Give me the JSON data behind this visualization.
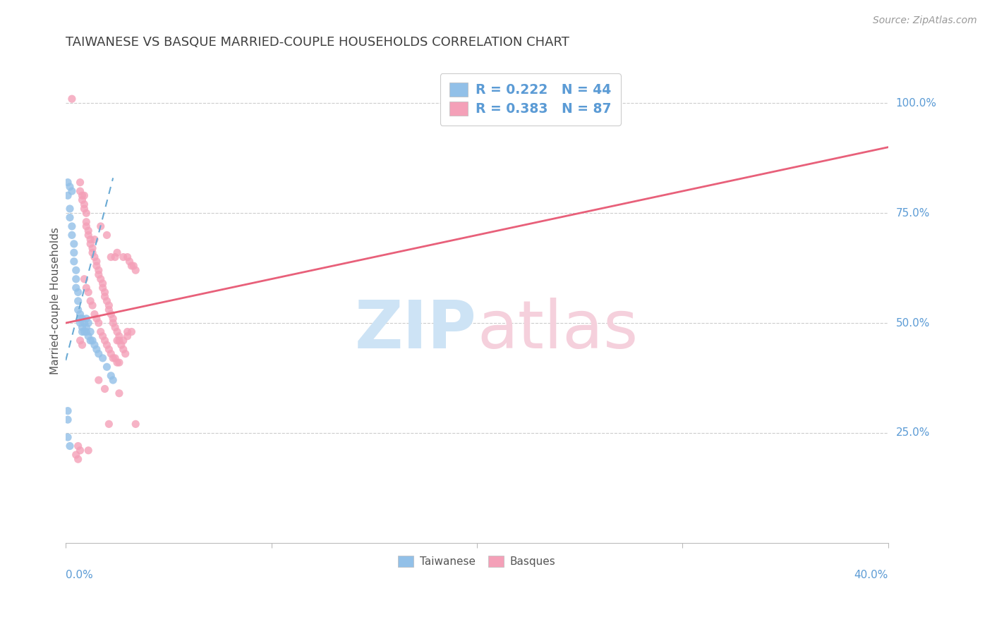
{
  "title": "TAIWANESE VS BASQUE MARRIED-COUPLE HOUSEHOLDS CORRELATION CHART",
  "source": "Source: ZipAtlas.com",
  "ylabel": "Married-couple Households",
  "ytick_labels": [
    "100.0%",
    "75.0%",
    "50.0%",
    "25.0%"
  ],
  "ytick_values": [
    1.0,
    0.75,
    0.5,
    0.25
  ],
  "xlim": [
    0.0,
    0.4
  ],
  "ylim": [
    0.0,
    1.1
  ],
  "legend_line1": "R = 0.222   N = 44",
  "legend_line2": "R = 0.383   N = 87",
  "taiwanese_color": "#92c0e8",
  "basque_color": "#f4a0b8",
  "taiwanese_line_color": "#6aaad4",
  "basque_line_color": "#e8607a",
  "watermark_zip_color": "#cde3f5",
  "watermark_atlas_color": "#f5d0dc",
  "title_color": "#404040",
  "title_fontsize": 13,
  "source_fontsize": 10,
  "axis_tick_color": "#5b9bd5",
  "grid_color": "#cccccc",
  "legend_text_color": "#5b9bd5",
  "taiwanese_points": [
    [
      0.001,
      0.82
    ],
    [
      0.001,
      0.79
    ],
    [
      0.002,
      0.81
    ],
    [
      0.002,
      0.76
    ],
    [
      0.002,
      0.74
    ],
    [
      0.003,
      0.8
    ],
    [
      0.003,
      0.72
    ],
    [
      0.003,
      0.7
    ],
    [
      0.004,
      0.68
    ],
    [
      0.004,
      0.66
    ],
    [
      0.004,
      0.64
    ],
    [
      0.005,
      0.62
    ],
    [
      0.005,
      0.6
    ],
    [
      0.005,
      0.58
    ],
    [
      0.006,
      0.57
    ],
    [
      0.006,
      0.55
    ],
    [
      0.006,
      0.53
    ],
    [
      0.007,
      0.52
    ],
    [
      0.007,
      0.51
    ],
    [
      0.007,
      0.5
    ],
    [
      0.008,
      0.51
    ],
    [
      0.008,
      0.49
    ],
    [
      0.008,
      0.48
    ],
    [
      0.009,
      0.5
    ],
    [
      0.009,
      0.48
    ],
    [
      0.01,
      0.51
    ],
    [
      0.01,
      0.49
    ],
    [
      0.01,
      0.48
    ],
    [
      0.011,
      0.5
    ],
    [
      0.011,
      0.47
    ],
    [
      0.012,
      0.48
    ],
    [
      0.012,
      0.46
    ],
    [
      0.013,
      0.46
    ],
    [
      0.014,
      0.45
    ],
    [
      0.015,
      0.44
    ],
    [
      0.016,
      0.43
    ],
    [
      0.018,
      0.42
    ],
    [
      0.02,
      0.4
    ],
    [
      0.022,
      0.38
    ],
    [
      0.023,
      0.37
    ],
    [
      0.001,
      0.3
    ],
    [
      0.001,
      0.28
    ],
    [
      0.001,
      0.24
    ],
    [
      0.002,
      0.22
    ]
  ],
  "basque_points": [
    [
      0.003,
      1.01
    ],
    [
      0.007,
      0.82
    ],
    [
      0.007,
      0.8
    ],
    [
      0.008,
      0.79
    ],
    [
      0.008,
      0.78
    ],
    [
      0.009,
      0.79
    ],
    [
      0.009,
      0.77
    ],
    [
      0.009,
      0.76
    ],
    [
      0.01,
      0.75
    ],
    [
      0.01,
      0.73
    ],
    [
      0.01,
      0.72
    ],
    [
      0.011,
      0.71
    ],
    [
      0.011,
      0.7
    ],
    [
      0.012,
      0.69
    ],
    [
      0.012,
      0.68
    ],
    [
      0.013,
      0.67
    ],
    [
      0.013,
      0.66
    ],
    [
      0.014,
      0.69
    ],
    [
      0.014,
      0.65
    ],
    [
      0.015,
      0.64
    ],
    [
      0.015,
      0.63
    ],
    [
      0.016,
      0.62
    ],
    [
      0.016,
      0.61
    ],
    [
      0.017,
      0.72
    ],
    [
      0.017,
      0.6
    ],
    [
      0.018,
      0.59
    ],
    [
      0.018,
      0.58
    ],
    [
      0.019,
      0.57
    ],
    [
      0.019,
      0.56
    ],
    [
      0.02,
      0.7
    ],
    [
      0.02,
      0.55
    ],
    [
      0.021,
      0.54
    ],
    [
      0.021,
      0.53
    ],
    [
      0.022,
      0.65
    ],
    [
      0.022,
      0.52
    ],
    [
      0.023,
      0.51
    ],
    [
      0.023,
      0.5
    ],
    [
      0.024,
      0.65
    ],
    [
      0.024,
      0.49
    ],
    [
      0.025,
      0.48
    ],
    [
      0.025,
      0.66
    ],
    [
      0.026,
      0.47
    ],
    [
      0.026,
      0.46
    ],
    [
      0.027,
      0.45
    ],
    [
      0.028,
      0.65
    ],
    [
      0.028,
      0.44
    ],
    [
      0.029,
      0.43
    ],
    [
      0.03,
      0.65
    ],
    [
      0.031,
      0.64
    ],
    [
      0.032,
      0.63
    ],
    [
      0.033,
      0.63
    ],
    [
      0.034,
      0.62
    ],
    [
      0.009,
      0.6
    ],
    [
      0.01,
      0.58
    ],
    [
      0.011,
      0.57
    ],
    [
      0.012,
      0.55
    ],
    [
      0.013,
      0.54
    ],
    [
      0.014,
      0.52
    ],
    [
      0.015,
      0.51
    ],
    [
      0.016,
      0.5
    ],
    [
      0.017,
      0.48
    ],
    [
      0.018,
      0.47
    ],
    [
      0.019,
      0.46
    ],
    [
      0.02,
      0.45
    ],
    [
      0.021,
      0.44
    ],
    [
      0.022,
      0.43
    ],
    [
      0.023,
      0.42
    ],
    [
      0.024,
      0.42
    ],
    [
      0.025,
      0.41
    ],
    [
      0.026,
      0.41
    ],
    [
      0.03,
      0.48
    ],
    [
      0.016,
      0.37
    ],
    [
      0.019,
      0.35
    ],
    [
      0.026,
      0.34
    ],
    [
      0.032,
      0.48
    ],
    [
      0.03,
      0.47
    ],
    [
      0.007,
      0.46
    ],
    [
      0.008,
      0.45
    ],
    [
      0.006,
      0.22
    ],
    [
      0.007,
      0.21
    ],
    [
      0.021,
      0.27
    ],
    [
      0.005,
      0.2
    ],
    [
      0.006,
      0.19
    ],
    [
      0.011,
      0.21
    ],
    [
      0.034,
      0.27
    ],
    [
      0.025,
      0.46
    ],
    [
      0.028,
      0.46
    ]
  ],
  "tw_trend": [
    0.0,
    0.4,
    0.59,
    -0.2
  ],
  "bq_trend_x": [
    0.0,
    0.4
  ],
  "bq_trend_y": [
    0.5,
    0.9
  ]
}
